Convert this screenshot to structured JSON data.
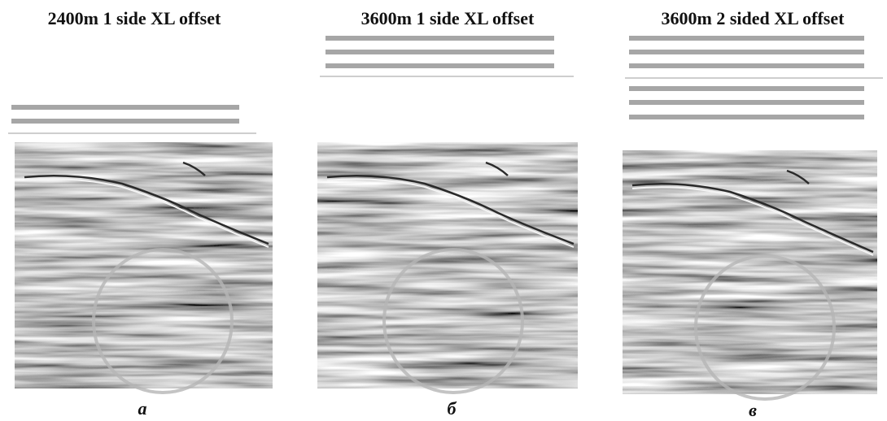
{
  "panels": [
    {
      "title": "2400m 1 side XL offset",
      "label": "а"
    },
    {
      "title": "3600m 1 side XL offset",
      "label": "б"
    },
    {
      "title": "3600m 2 sided XL offset",
      "label": "в"
    }
  ]
}
